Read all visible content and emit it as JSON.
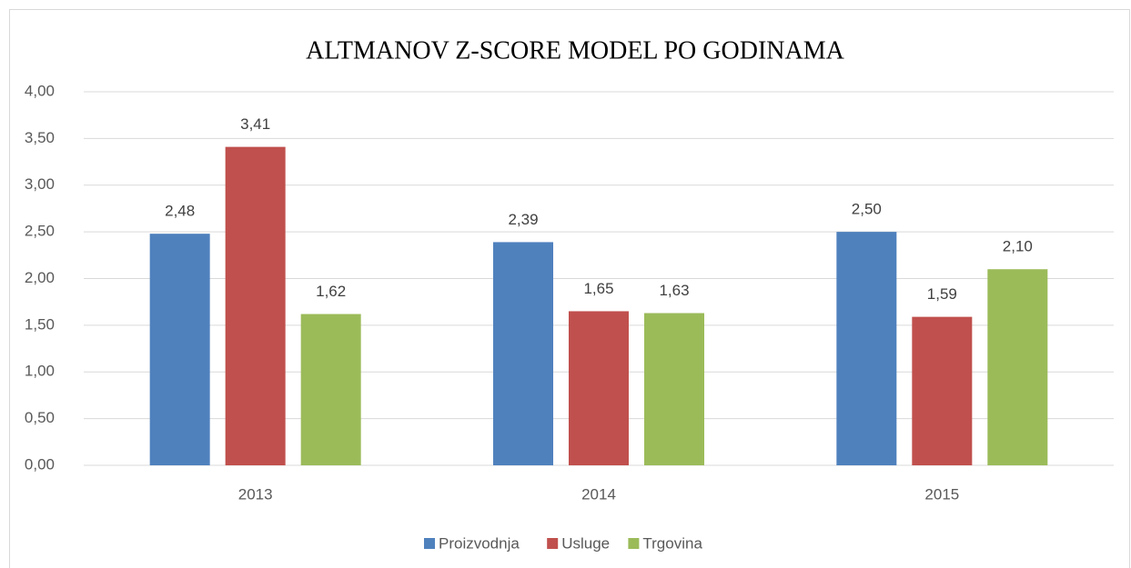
{
  "chart_data": {
    "type": "bar",
    "title": "ALTMANOV Z-SCORE MODEL PO GODINAMA",
    "categories": [
      "2013",
      "2014",
      "2015"
    ],
    "series": [
      {
        "name": "Proizvodnja",
        "color": "#4f81bd",
        "values": [
          2.48,
          2.39,
          2.5
        ],
        "value_labels": [
          "2,48",
          "2,39",
          "2,50"
        ]
      },
      {
        "name": "Usluge",
        "color": "#c0504d",
        "values": [
          3.41,
          1.65,
          1.59
        ],
        "value_labels": [
          "3,41",
          "1,65",
          "1,59"
        ]
      },
      {
        "name": "Trgovina",
        "color": "#9bbb59",
        "values": [
          1.62,
          1.63,
          2.1
        ],
        "value_labels": [
          "1,62",
          "1,63",
          "2,10"
        ]
      }
    ],
    "ylim": [
      0,
      4
    ],
    "yticks": [
      {
        "value": 0,
        "label": "0,00"
      },
      {
        "value": 0.5,
        "label": "0,50"
      },
      {
        "value": 1,
        "label": "1,00"
      },
      {
        "value": 1.5,
        "label": "1,50"
      },
      {
        "value": 2,
        "label": "2,00"
      },
      {
        "value": 2.5,
        "label": "2,50"
      },
      {
        "value": 3,
        "label": "3,00"
      },
      {
        "value": 3.5,
        "label": "3,50"
      },
      {
        "value": 4,
        "label": "4,00"
      }
    ],
    "grid": true,
    "legend": "bottom"
  }
}
